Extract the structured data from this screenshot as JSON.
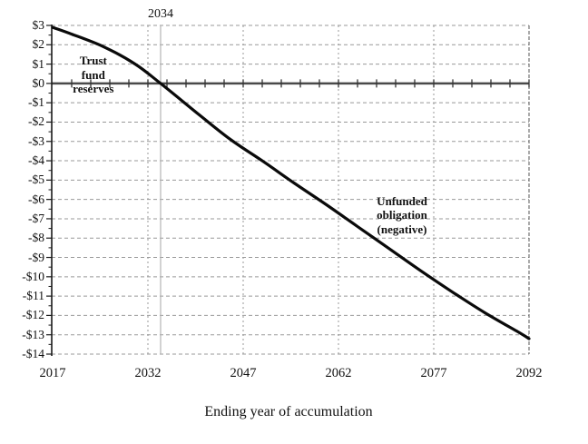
{
  "chart_data": {
    "type": "line",
    "title": "",
    "xlabel": "Ending year of accumulation",
    "ylabel": "",
    "xlim": [
      2017,
      2092
    ],
    "ylim": [
      -14,
      3
    ],
    "grid": true,
    "legend": "none",
    "x_tick_values": [
      2017,
      2032,
      2047,
      2062,
      2077,
      2092
    ],
    "x_tick_labels": [
      "2017",
      "2032",
      "2047",
      "2062",
      "2077",
      "2092"
    ],
    "y_tick_values": [
      3,
      2,
      1,
      0,
      -1,
      -2,
      -3,
      -4,
      -5,
      -6,
      -7,
      -8,
      -9,
      -10,
      -11,
      -12,
      -13,
      -14
    ],
    "y_tick_labels": [
      "$3",
      "$2",
      "$1",
      "$0",
      "-$1",
      "-$2",
      "-$3",
      "-$4",
      "-$5",
      "-$6",
      "-$7",
      "-$8",
      "-$9",
      "-$10",
      "-$11",
      "-$12",
      "-$13",
      "-$14"
    ],
    "x_minor_tick_step_years": 3,
    "y_minor_tick_step": 0.5,
    "series": [
      {
        "x": [
          2017,
          2020,
          2025,
          2030,
          2034,
          2040,
          2045,
          2050,
          2055,
          2060,
          2065,
          2070,
          2075,
          2080,
          2085,
          2090,
          2092
        ],
        "y": [
          2.9,
          2.55,
          1.9,
          1.0,
          0.0,
          -1.6,
          -2.9,
          -4.0,
          -5.15,
          -6.25,
          -7.4,
          -8.55,
          -9.7,
          -10.8,
          -11.85,
          -12.8,
          -13.2
        ]
      }
    ],
    "annotations": [
      {
        "id": "depletion-year",
        "text": "2034",
        "x": 2034,
        "type": "vline-label"
      },
      {
        "id": "trust-fund",
        "text": "Trust\nfund\nreserves",
        "x": 2023.4,
        "y": 0.45
      },
      {
        "id": "unfunded",
        "text": "Unfunded\nobligation\n(negative)",
        "x": 2072,
        "y": -6.8
      }
    ]
  },
  "colors": {
    "curve": "#0a0a0a",
    "grid": "#999999",
    "zero_line": "#4a4a4a",
    "axis": "#1a1a1a",
    "depletion_line": "#b3b3b3",
    "right_edge": "#555555",
    "tick": "#333333",
    "text": "#111111"
  }
}
